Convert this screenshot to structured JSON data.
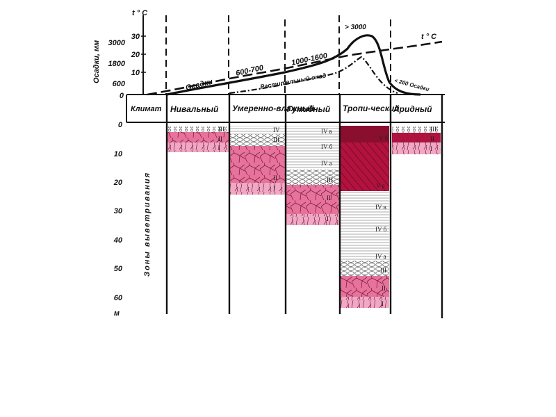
{
  "top_chart": {
    "temp_axis_label": "t ° C",
    "temp_axis_ticks": [
      "30",
      "20",
      "10"
    ],
    "precip_axis_label": "Осадки, мм",
    "precip_axis_ticks": [
      "3000",
      "1800",
      "600",
      "0"
    ],
    "temp_curve_label": "t ° C",
    "precip_curve_label": "Осадки",
    "litter_curve_label": "Растительный опад",
    "annotations": [
      "600-700",
      "1000-1600",
      "> 3000",
      "< 200 Осадки"
    ]
  },
  "zones_header": {
    "climate_label": "Климат",
    "zones": [
      "Нивальный",
      "Умеренно-влажный",
      "Гумидный",
      "Тропи-ческий",
      "Аридный"
    ]
  },
  "depth_axis": {
    "title": "Зоны выветривания",
    "ticks": [
      "0",
      "10",
      "20",
      "30",
      "40",
      "50",
      "60"
    ],
    "unit": "м"
  },
  "profile_labels": {
    "nival": [
      "I",
      "II",
      "III"
    ],
    "temperate": [
      "I",
      "II",
      "III",
      "IV"
    ],
    "humid": [
      "I",
      "II",
      "III",
      "IV а",
      "IV б",
      "IV в"
    ],
    "tropical": [
      "I",
      "II",
      "III",
      "IV а",
      "IV б",
      "IV в",
      "V а",
      "V б"
    ],
    "arid": [
      "I",
      "II",
      "III"
    ]
  },
  "colors": {
    "pink_light": "#f0a8c4",
    "pink_mid": "#e7729c",
    "crimson": "#b3123f",
    "maroon": "#8a0f2e",
    "stripe_gray": "#b9b9b9"
  }
}
